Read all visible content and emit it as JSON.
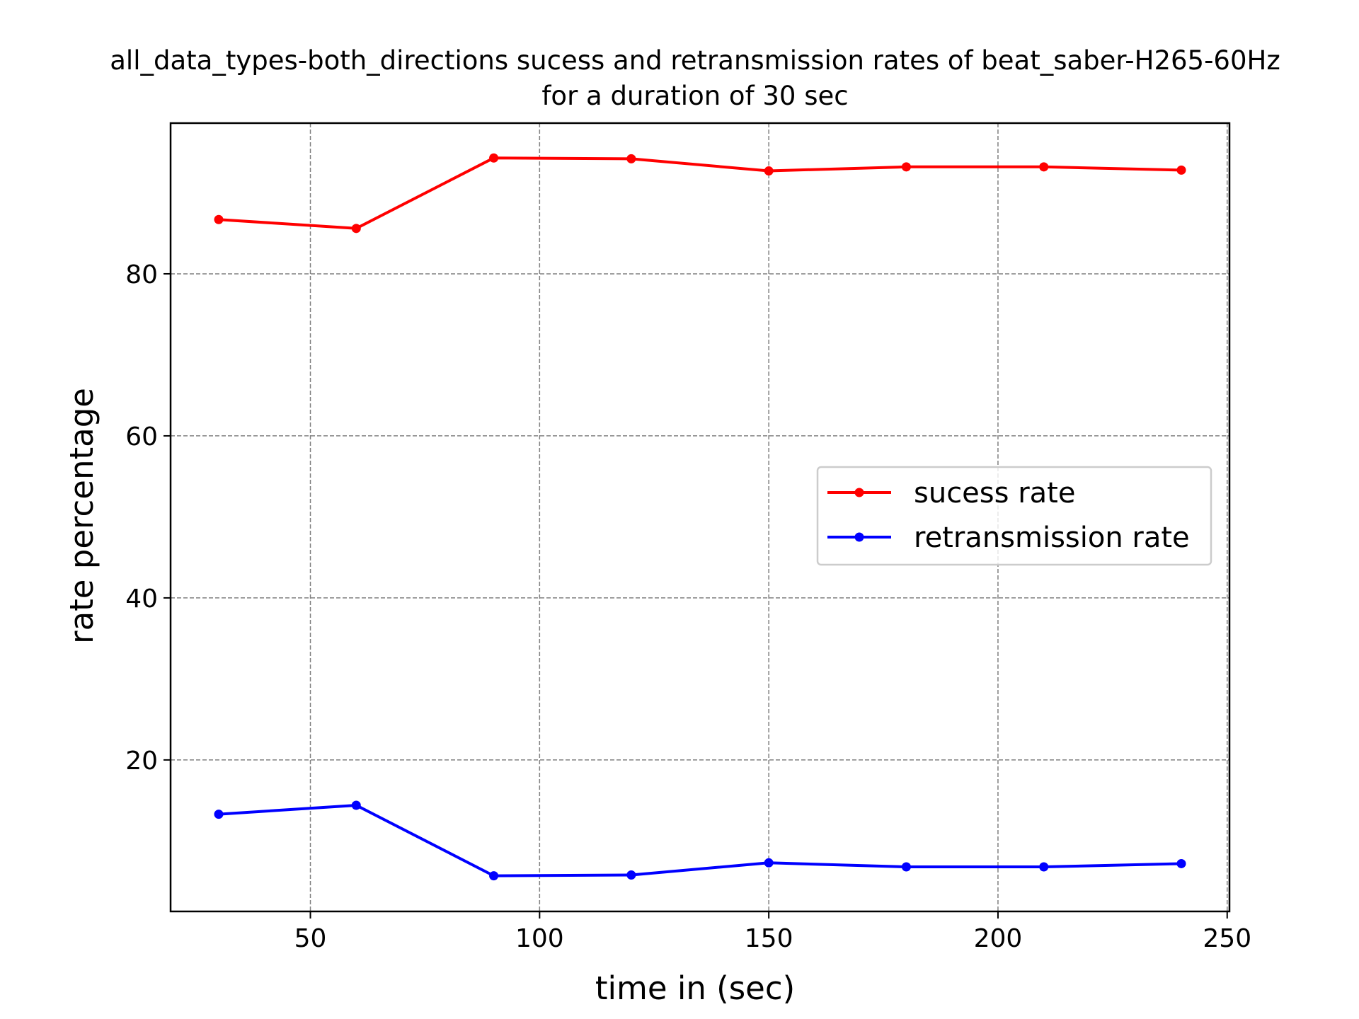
{
  "chart_data": {
    "type": "line",
    "title": "all_data_types-both_directions sucess and retransmission rates of beat_saber-H265-60Hz",
    "subtitle": "for a duration of 30 sec",
    "xlabel": "time in (sec)",
    "ylabel": "rate percentage",
    "xlim": [
      19.5,
      250.5
    ],
    "ylim": [
      1.3,
      98.6
    ],
    "xticks": [
      50,
      100,
      150,
      200,
      250
    ],
    "yticks": [
      20,
      40,
      60,
      80
    ],
    "grid": true,
    "legend_position": "center-right",
    "x": [
      30,
      60,
      90,
      120,
      150,
      180,
      210,
      240
    ],
    "series": [
      {
        "name": "sucess rate",
        "color": "#ff0000",
        "values": [
          86.7,
          85.6,
          94.3,
          94.2,
          92.7,
          93.2,
          93.2,
          92.8
        ]
      },
      {
        "name": "retransmission rate",
        "color": "#0000ff",
        "values": [
          13.3,
          14.4,
          5.7,
          5.8,
          7.3,
          6.8,
          6.8,
          7.2
        ]
      }
    ]
  }
}
